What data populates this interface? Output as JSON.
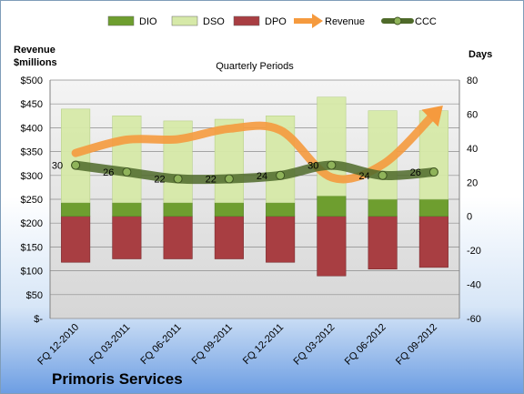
{
  "chart_data": {
    "type": "bar",
    "title": "Quarterly Periods",
    "company": "Primoris Services",
    "left_axis_label": [
      "Revenue",
      "$millions"
    ],
    "right_axis_label": "Days",
    "categories": [
      "FQ 12-2010",
      "FQ 03-2011",
      "FQ 06-2011",
      "FQ 09-2011",
      "FQ 12-2011",
      "FQ 03-2012",
      "FQ 06-2012",
      "FQ 09-2012"
    ],
    "left_ticks": [
      "$500",
      "$450",
      "$400",
      "$350",
      "$300",
      "$250",
      "$200",
      "$150",
      "$100",
      "$50",
      "$-"
    ],
    "right_ticks": [
      "80",
      "60",
      "40",
      "20",
      "0",
      "-20",
      "-40",
      "-60"
    ],
    "ylim_left": [
      0,
      500
    ],
    "ylim_right": [
      -60,
      80
    ],
    "legend_position": "top",
    "series": [
      {
        "name": "DIO",
        "axis": "right",
        "kind": "stacked-bar",
        "color": "#6e9e2f",
        "values": [
          8,
          8,
          8,
          8,
          8,
          12,
          10,
          10
        ]
      },
      {
        "name": "DSO",
        "axis": "right",
        "kind": "stacked-bar",
        "color": "#d6e9a8",
        "values": [
          55,
          51,
          48,
          49,
          51,
          58,
          52,
          52
        ]
      },
      {
        "name": "DPO",
        "axis": "right",
        "kind": "negative-bar",
        "color": "#a83e42",
        "values": [
          -27,
          -25,
          -25,
          -25,
          -27,
          -35,
          -31,
          -30
        ]
      },
      {
        "name": "Revenue",
        "axis": "left",
        "kind": "line",
        "color": "#f59a3e",
        "values": [
          347,
          375,
          376,
          398,
          395,
          296,
          323,
          428
        ]
      },
      {
        "name": "CCC",
        "axis": "right",
        "kind": "line",
        "color": "#4f6a2a",
        "values": [
          30,
          26,
          22,
          22,
          24,
          30,
          24,
          26
        ]
      }
    ],
    "ccc_labels": [
      "30",
      "26",
      "22",
      "22",
      "24",
      "30",
      "24",
      "26"
    ]
  }
}
